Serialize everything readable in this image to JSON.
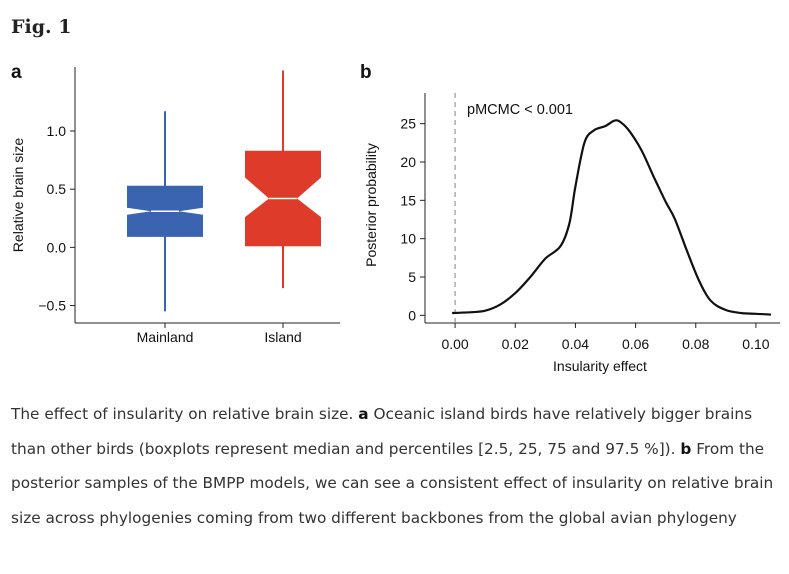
{
  "figure": {
    "title": "Fig. 1",
    "caption": {
      "s1": "The effect of insularity on relative brain size.",
      "a_label": "a",
      "a_text": "Oceanic island birds have relatively bigger brains than other birds (boxplots represent median and percentiles [2.5, 25, 75 and 97.5 %]).",
      "b_label": "b",
      "b_text": "From the posterior samples of the BMPP models, we can see a consistent effect of insularity on relative brain size across phylogenies coming from two different backbones from the global avian phylogeny"
    }
  },
  "chart_data": [
    {
      "panel": "a",
      "type": "boxplot",
      "ylabel": "Relative brain size",
      "ylim": [
        -0.65,
        1.55
      ],
      "yticks": [
        -0.5,
        0.0,
        0.5,
        1.0
      ],
      "ytick_labels": [
        "−0.5",
        "0.0",
        "0.5",
        "1.0"
      ],
      "categories": [
        "Mainland",
        "Island"
      ],
      "boxes": [
        {
          "name": "Mainland",
          "color": "#3a64b0",
          "whisker_low": -0.55,
          "q1": 0.09,
          "median": 0.31,
          "q3": 0.53,
          "whisker_high": 1.17,
          "notch": [
            0.28,
            0.34
          ]
        },
        {
          "name": "Island",
          "color": "#df3b2a",
          "whisker_low": -0.35,
          "q1": 0.01,
          "median": 0.42,
          "q3": 0.83,
          "whisker_high": 1.52,
          "notch": [
            0.26,
            0.6
          ]
        }
      ]
    },
    {
      "panel": "b",
      "type": "line",
      "annotation": "pMCMC < 0.001",
      "xlabel": "Insularity effect",
      "ylabel": "Posterior probability",
      "xlim": [
        -0.01,
        0.108
      ],
      "ylim": [
        -1,
        29
      ],
      "xticks": [
        0.0,
        0.02,
        0.04,
        0.06,
        0.08,
        0.1
      ],
      "xtick_labels": [
        "0.00",
        "0.02",
        "0.04",
        "0.06",
        "0.08",
        "0.10"
      ],
      "yticks": [
        0,
        5,
        10,
        15,
        20,
        25
      ],
      "ytick_labels": [
        "0",
        "5",
        "10",
        "15",
        "20",
        "25"
      ],
      "reference_line_x": 0.0,
      "series": [
        {
          "name": "posterior density",
          "x": [
            -0.001,
            0.005,
            0.01,
            0.015,
            0.02,
            0.025,
            0.03,
            0.035,
            0.038,
            0.04,
            0.043,
            0.046,
            0.05,
            0.053,
            0.055,
            0.058,
            0.062,
            0.066,
            0.07,
            0.073,
            0.077,
            0.081,
            0.085,
            0.09,
            0.095,
            0.1,
            0.105
          ],
          "y": [
            0.3,
            0.4,
            0.6,
            1.4,
            2.9,
            5.0,
            7.4,
            9.0,
            12.0,
            16.8,
            22.5,
            24.1,
            24.7,
            25.4,
            25.2,
            24.0,
            21.5,
            18.1,
            14.8,
            12.6,
            8.5,
            4.6,
            1.9,
            0.7,
            0.3,
            0.2,
            0.1
          ]
        }
      ]
    }
  ]
}
